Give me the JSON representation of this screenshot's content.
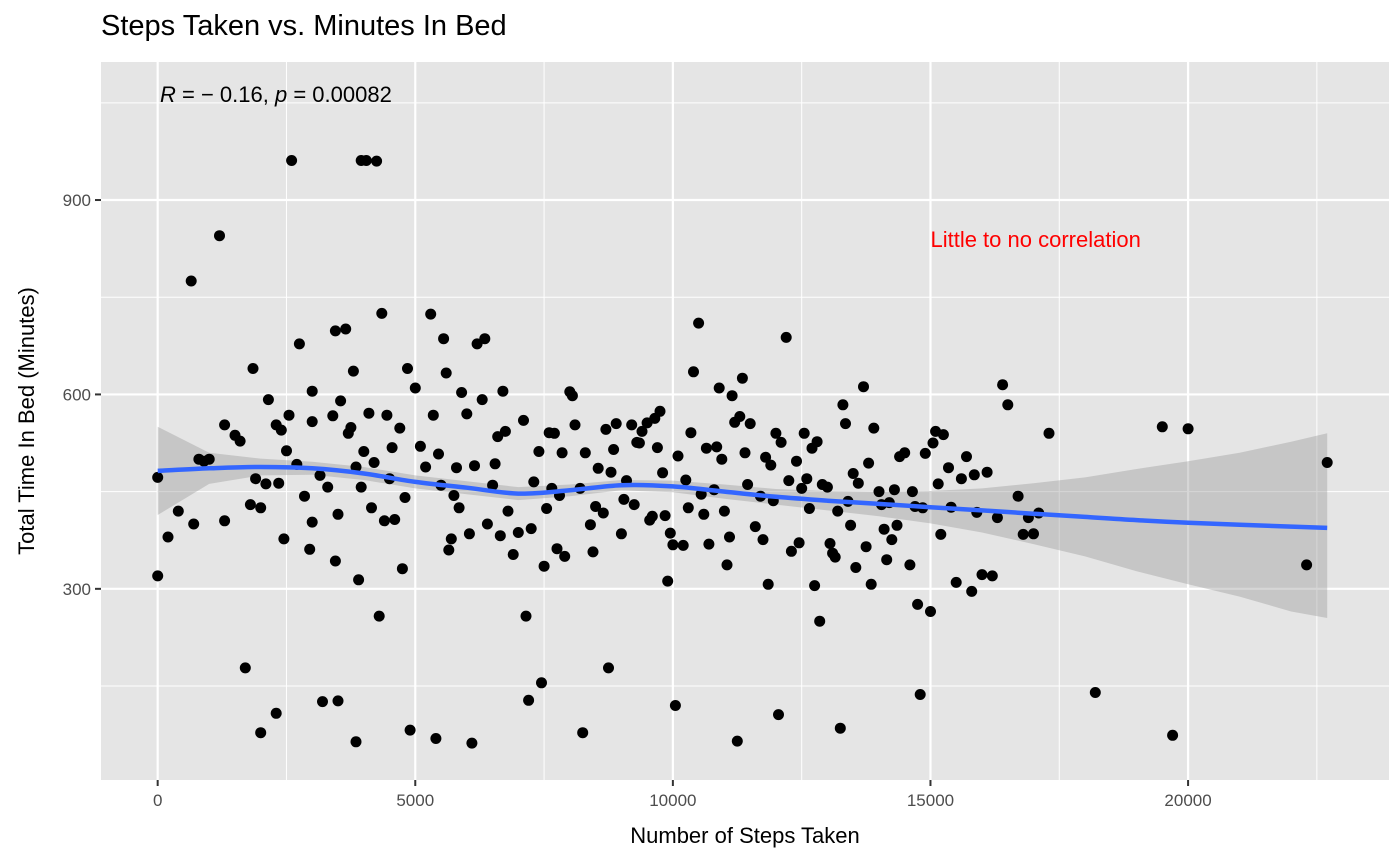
{
  "chart_data": {
    "type": "scatter",
    "title": "Steps Taken vs. Minutes In Bed",
    "xlabel": "Number of Steps Taken",
    "ylabel": "Total Time In Bed (Minutes)",
    "xlim": [
      -1100,
      23900
    ],
    "ylim": [
      5,
      1113
    ],
    "x_ticks": [
      0,
      5000,
      10000,
      15000,
      20000
    ],
    "y_ticks": [
      300,
      600,
      900
    ],
    "grid": true,
    "stat": {
      "r_label": "R",
      "r_value": " = − 0.16, ",
      "p_label": "p",
      "p_value": " = 0.00082"
    },
    "annotation": {
      "text": "Little to no correlation",
      "x": 15000,
      "y": 840,
      "color": "#ff0000"
    },
    "colors": {
      "panel": "#e5e5e5",
      "grid": "#ffffff",
      "points": "#000000",
      "smooth": "#3366ff",
      "ribbon": "#999999"
    },
    "smooth": {
      "x": [
        0,
        1000,
        2000,
        3000,
        4000,
        5000,
        6000,
        7000,
        8000,
        9000,
        10000,
        11000,
        12000,
        13000,
        14000,
        15000,
        16000,
        17000,
        18000,
        19000,
        20000,
        21000,
        22000,
        22700
      ],
      "y": [
        482,
        486,
        488,
        486,
        478,
        465,
        456,
        447,
        452,
        460,
        458,
        450,
        442,
        436,
        431,
        426,
        421,
        416,
        411,
        406,
        402,
        399,
        396,
        394
      ],
      "upper": [
        550,
        510,
        501,
        496,
        488,
        475,
        466,
        457,
        461,
        468,
        467,
        461,
        454,
        451,
        450,
        451,
        455,
        463,
        472,
        485,
        497,
        510,
        527,
        540
      ],
      "lower": [
        414,
        462,
        475,
        476,
        468,
        455,
        446,
        437,
        443,
        452,
        449,
        439,
        430,
        421,
        412,
        401,
        387,
        369,
        350,
        327,
        307,
        288,
        265,
        255
      ]
    },
    "points": [
      [
        0,
        320
      ],
      [
        0,
        472
      ],
      [
        200,
        380
      ],
      [
        400,
        420
      ],
      [
        650,
        775
      ],
      [
        700,
        400
      ],
      [
        800,
        500
      ],
      [
        900,
        497
      ],
      [
        1000,
        500
      ],
      [
        1200,
        845
      ],
      [
        1300,
        405
      ],
      [
        1300,
        553
      ],
      [
        1500,
        537
      ],
      [
        1600,
        528
      ],
      [
        1700,
        178
      ],
      [
        1800,
        430
      ],
      [
        1850,
        640
      ],
      [
        1900,
        470
      ],
      [
        2000,
        425
      ],
      [
        2000,
        78
      ],
      [
        2100,
        462
      ],
      [
        2150,
        592
      ],
      [
        2300,
        553
      ],
      [
        2300,
        108
      ],
      [
        2350,
        463
      ],
      [
        2400,
        545
      ],
      [
        2450,
        377
      ],
      [
        2500,
        513
      ],
      [
        2550,
        568
      ],
      [
        2600,
        961
      ],
      [
        2700,
        492
      ],
      [
        2750,
        678
      ],
      [
        2850,
        443
      ],
      [
        2950,
        361
      ],
      [
        3000,
        605
      ],
      [
        3000,
        558
      ],
      [
        3000,
        403
      ],
      [
        3150,
        475
      ],
      [
        3200,
        126
      ],
      [
        3300,
        457
      ],
      [
        3400,
        567
      ],
      [
        3450,
        343
      ],
      [
        3450,
        698
      ],
      [
        3500,
        415
      ],
      [
        3500,
        127
      ],
      [
        3550,
        590
      ],
      [
        3650,
        701
      ],
      [
        3700,
        540
      ],
      [
        3750,
        549
      ],
      [
        3800,
        636
      ],
      [
        3850,
        488
      ],
      [
        3850,
        64
      ],
      [
        3900,
        314
      ],
      [
        3950,
        961
      ],
      [
        3950,
        457
      ],
      [
        4000,
        512
      ],
      [
        4050,
        961
      ],
      [
        4100,
        571
      ],
      [
        4150,
        425
      ],
      [
        4200,
        495
      ],
      [
        4250,
        960
      ],
      [
        4300,
        258
      ],
      [
        4350,
        725
      ],
      [
        4400,
        405
      ],
      [
        4450,
        568
      ],
      [
        4500,
        470
      ],
      [
        4550,
        518
      ],
      [
        4600,
        407
      ],
      [
        4700,
        548
      ],
      [
        4750,
        331
      ],
      [
        4800,
        441
      ],
      [
        4850,
        640
      ],
      [
        4900,
        82
      ],
      [
        5000,
        610
      ],
      [
        5100,
        520
      ],
      [
        5200,
        488
      ],
      [
        5300,
        724
      ],
      [
        5350,
        568
      ],
      [
        5400,
        69
      ],
      [
        5450,
        508
      ],
      [
        5500,
        460
      ],
      [
        5550,
        686
      ],
      [
        5600,
        633
      ],
      [
        5650,
        360
      ],
      [
        5700,
        377
      ],
      [
        5750,
        444
      ],
      [
        5800,
        487
      ],
      [
        5850,
        425
      ],
      [
        5900,
        603
      ],
      [
        6000,
        570
      ],
      [
        6050,
        385
      ],
      [
        6100,
        62
      ],
      [
        6150,
        490
      ],
      [
        6200,
        678
      ],
      [
        6300,
        592
      ],
      [
        6350,
        686
      ],
      [
        6400,
        400
      ],
      [
        6500,
        460
      ],
      [
        6550,
        493
      ],
      [
        6600,
        535
      ],
      [
        6650,
        382
      ],
      [
        6700,
        605
      ],
      [
        6750,
        543
      ],
      [
        6800,
        420
      ],
      [
        6900,
        353
      ],
      [
        7000,
        387
      ],
      [
        7100,
        560
      ],
      [
        7150,
        258
      ],
      [
        7200,
        128
      ],
      [
        7250,
        393
      ],
      [
        7300,
        465
      ],
      [
        7400,
        512
      ],
      [
        7450,
        155
      ],
      [
        7500,
        335
      ],
      [
        7550,
        424
      ],
      [
        7600,
        541
      ],
      [
        7650,
        455
      ],
      [
        7700,
        540
      ],
      [
        7750,
        362
      ],
      [
        7800,
        444
      ],
      [
        7850,
        510
      ],
      [
        7900,
        350
      ],
      [
        8000,
        604
      ],
      [
        8050,
        598
      ],
      [
        8100,
        553
      ],
      [
        8200,
        455
      ],
      [
        8250,
        78
      ],
      [
        8300,
        510
      ],
      [
        8400,
        399
      ],
      [
        8450,
        357
      ],
      [
        8500,
        427
      ],
      [
        8550,
        486
      ],
      [
        8650,
        417
      ],
      [
        8700,
        546
      ],
      [
        8750,
        178
      ],
      [
        8800,
        480
      ],
      [
        8850,
        515
      ],
      [
        8900,
        555
      ],
      [
        9000,
        385
      ],
      [
        9050,
        438
      ],
      [
        9100,
        467
      ],
      [
        9200,
        553
      ],
      [
        9250,
        430
      ],
      [
        9300,
        526
      ],
      [
        9350,
        525
      ],
      [
        9400,
        543
      ],
      [
        9500,
        556
      ],
      [
        9550,
        406
      ],
      [
        9600,
        412
      ],
      [
        9650,
        563
      ],
      [
        9700,
        518
      ],
      [
        9750,
        574
      ],
      [
        9800,
        479
      ],
      [
        9850,
        413
      ],
      [
        9900,
        312
      ],
      [
        9950,
        386
      ],
      [
        10000,
        368
      ],
      [
        10050,
        120
      ],
      [
        10100,
        505
      ],
      [
        10200,
        367
      ],
      [
        10250,
        468
      ],
      [
        10300,
        425
      ],
      [
        10350,
        541
      ],
      [
        10400,
        635
      ],
      [
        10500,
        710
      ],
      [
        10550,
        446
      ],
      [
        10600,
        415
      ],
      [
        10650,
        517
      ],
      [
        10700,
        369
      ],
      [
        10800,
        453
      ],
      [
        10850,
        519
      ],
      [
        10900,
        610
      ],
      [
        10950,
        500
      ],
      [
        11000,
        420
      ],
      [
        11050,
        337
      ],
      [
        11100,
        380
      ],
      [
        11150,
        598
      ],
      [
        11200,
        557
      ],
      [
        11250,
        65
      ],
      [
        11300,
        566
      ],
      [
        11350,
        625
      ],
      [
        11400,
        510
      ],
      [
        11450,
        461
      ],
      [
        11500,
        555
      ],
      [
        11600,
        396
      ],
      [
        11700,
        443
      ],
      [
        11750,
        376
      ],
      [
        11800,
        503
      ],
      [
        11850,
        307
      ],
      [
        11900,
        491
      ],
      [
        11950,
        436
      ],
      [
        12000,
        540
      ],
      [
        12050,
        106
      ],
      [
        12100,
        526
      ],
      [
        12200,
        688
      ],
      [
        12250,
        467
      ],
      [
        12300,
        358
      ],
      [
        12400,
        497
      ],
      [
        12450,
        371
      ],
      [
        12500,
        455
      ],
      [
        12550,
        540
      ],
      [
        12600,
        470
      ],
      [
        12650,
        424
      ],
      [
        12700,
        517
      ],
      [
        12750,
        305
      ],
      [
        12800,
        527
      ],
      [
        12850,
        250
      ],
      [
        12900,
        461
      ],
      [
        13000,
        457
      ],
      [
        13050,
        370
      ],
      [
        13100,
        355
      ],
      [
        13150,
        349
      ],
      [
        13200,
        420
      ],
      [
        13250,
        85
      ],
      [
        13300,
        584
      ],
      [
        13350,
        555
      ],
      [
        13400,
        435
      ],
      [
        13450,
        398
      ],
      [
        13500,
        478
      ],
      [
        13550,
        333
      ],
      [
        13600,
        463
      ],
      [
        13700,
        612
      ],
      [
        13750,
        365
      ],
      [
        13800,
        494
      ],
      [
        13850,
        307
      ],
      [
        13900,
        548
      ],
      [
        14000,
        450
      ],
      [
        14050,
        430
      ],
      [
        14100,
        392
      ],
      [
        14150,
        345
      ],
      [
        14200,
        433
      ],
      [
        14250,
        376
      ],
      [
        14300,
        453
      ],
      [
        14350,
        398
      ],
      [
        14400,
        504
      ],
      [
        14500,
        510
      ],
      [
        14600,
        337
      ],
      [
        14650,
        450
      ],
      [
        14700,
        427
      ],
      [
        14750,
        276
      ],
      [
        14800,
        137
      ],
      [
        14850,
        425
      ],
      [
        14900,
        509
      ],
      [
        15000,
        265
      ],
      [
        15050,
        525
      ],
      [
        15100,
        543
      ],
      [
        15150,
        462
      ],
      [
        15200,
        384
      ],
      [
        15250,
        538
      ],
      [
        15350,
        487
      ],
      [
        15400,
        426
      ],
      [
        15500,
        310
      ],
      [
        15600,
        470
      ],
      [
        15700,
        504
      ],
      [
        15800,
        296
      ],
      [
        15850,
        476
      ],
      [
        15900,
        418
      ],
      [
        16000,
        322
      ],
      [
        16100,
        480
      ],
      [
        16200,
        320
      ],
      [
        16300,
        410
      ],
      [
        16400,
        615
      ],
      [
        16500,
        584
      ],
      [
        16700,
        443
      ],
      [
        16800,
        384
      ],
      [
        16900,
        410
      ],
      [
        17000,
        385
      ],
      [
        17100,
        417
      ],
      [
        17300,
        540
      ],
      [
        18200,
        140
      ],
      [
        19500,
        550
      ],
      [
        19700,
        74
      ],
      [
        20000,
        547
      ],
      [
        22300,
        337
      ],
      [
        22700,
        495
      ]
    ]
  }
}
